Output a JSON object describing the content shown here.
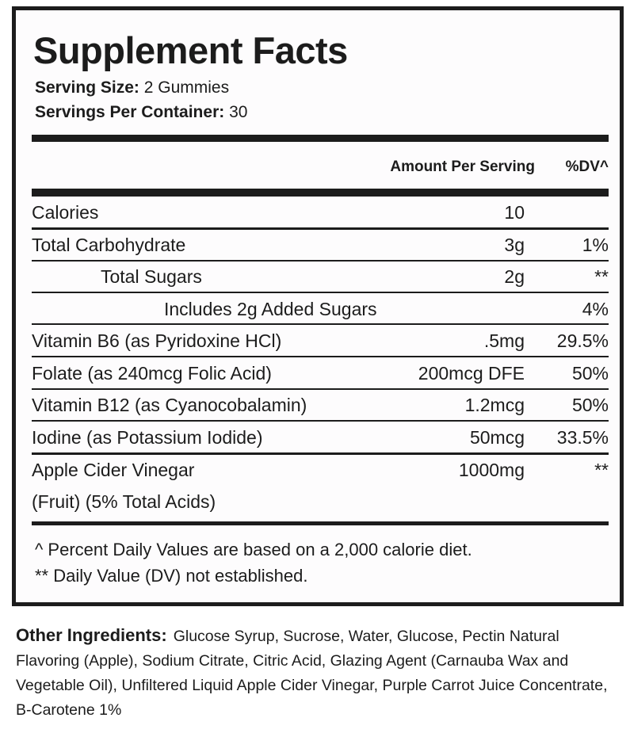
{
  "title": "Supplement Facts",
  "serving_size": {
    "label": "Serving Size:",
    "value": "2 Gummies"
  },
  "servings_per_container": {
    "label": "Servings Per Container:",
    "value": "30"
  },
  "header": {
    "amount": "Amount Per Serving",
    "dv": "%DV^"
  },
  "rows": [
    {
      "name": "Calories",
      "amount": "10",
      "dv": ""
    },
    {
      "name": "Total Carbohydrate",
      "amount": "3g",
      "dv": "1%"
    },
    {
      "name": "Total Sugars",
      "amount": "2g",
      "dv": "**"
    },
    {
      "name": "Includes 2g Added Sugars",
      "amount": "",
      "dv": "4%"
    },
    {
      "name": "Vitamin B6 (as Pyridoxine HCl)",
      "amount": ".5mg",
      "dv": "29.5%"
    },
    {
      "name": "Folate (as 240mcg Folic Acid)",
      "amount": "200mcg DFE",
      "dv": "50%"
    },
    {
      "name": "Vitamin B12 (as Cyanocobalamin)",
      "amount": "1.2mcg",
      "dv": "50%"
    },
    {
      "name": "Iodine (as Potassium Iodide)",
      "amount": "50mcg",
      "dv": "33.5%"
    },
    {
      "name": "Apple Cider Vinegar",
      "name2": "(Fruit) (5% Total Acids)",
      "amount": "1000mg",
      "dv": "**"
    }
  ],
  "footnotes": [
    "^ Percent Daily Values are based on a 2,000 calorie diet.",
    "** Daily Value (DV) not established."
  ],
  "other_ingredients": {
    "label": "Other Ingredients:",
    "text": "Glucose Syrup, Sucrose, Water, Glucose, Pectin Natural Flavoring (Apple), Sodium Citrate, Citric Acid, Glazing Agent (Carnauba Wax and Vegetable Oil), Unfiltered Liquid Apple Cider Vinegar, Purple Carrot Juice Concentrate, B-Carotene 1%"
  }
}
